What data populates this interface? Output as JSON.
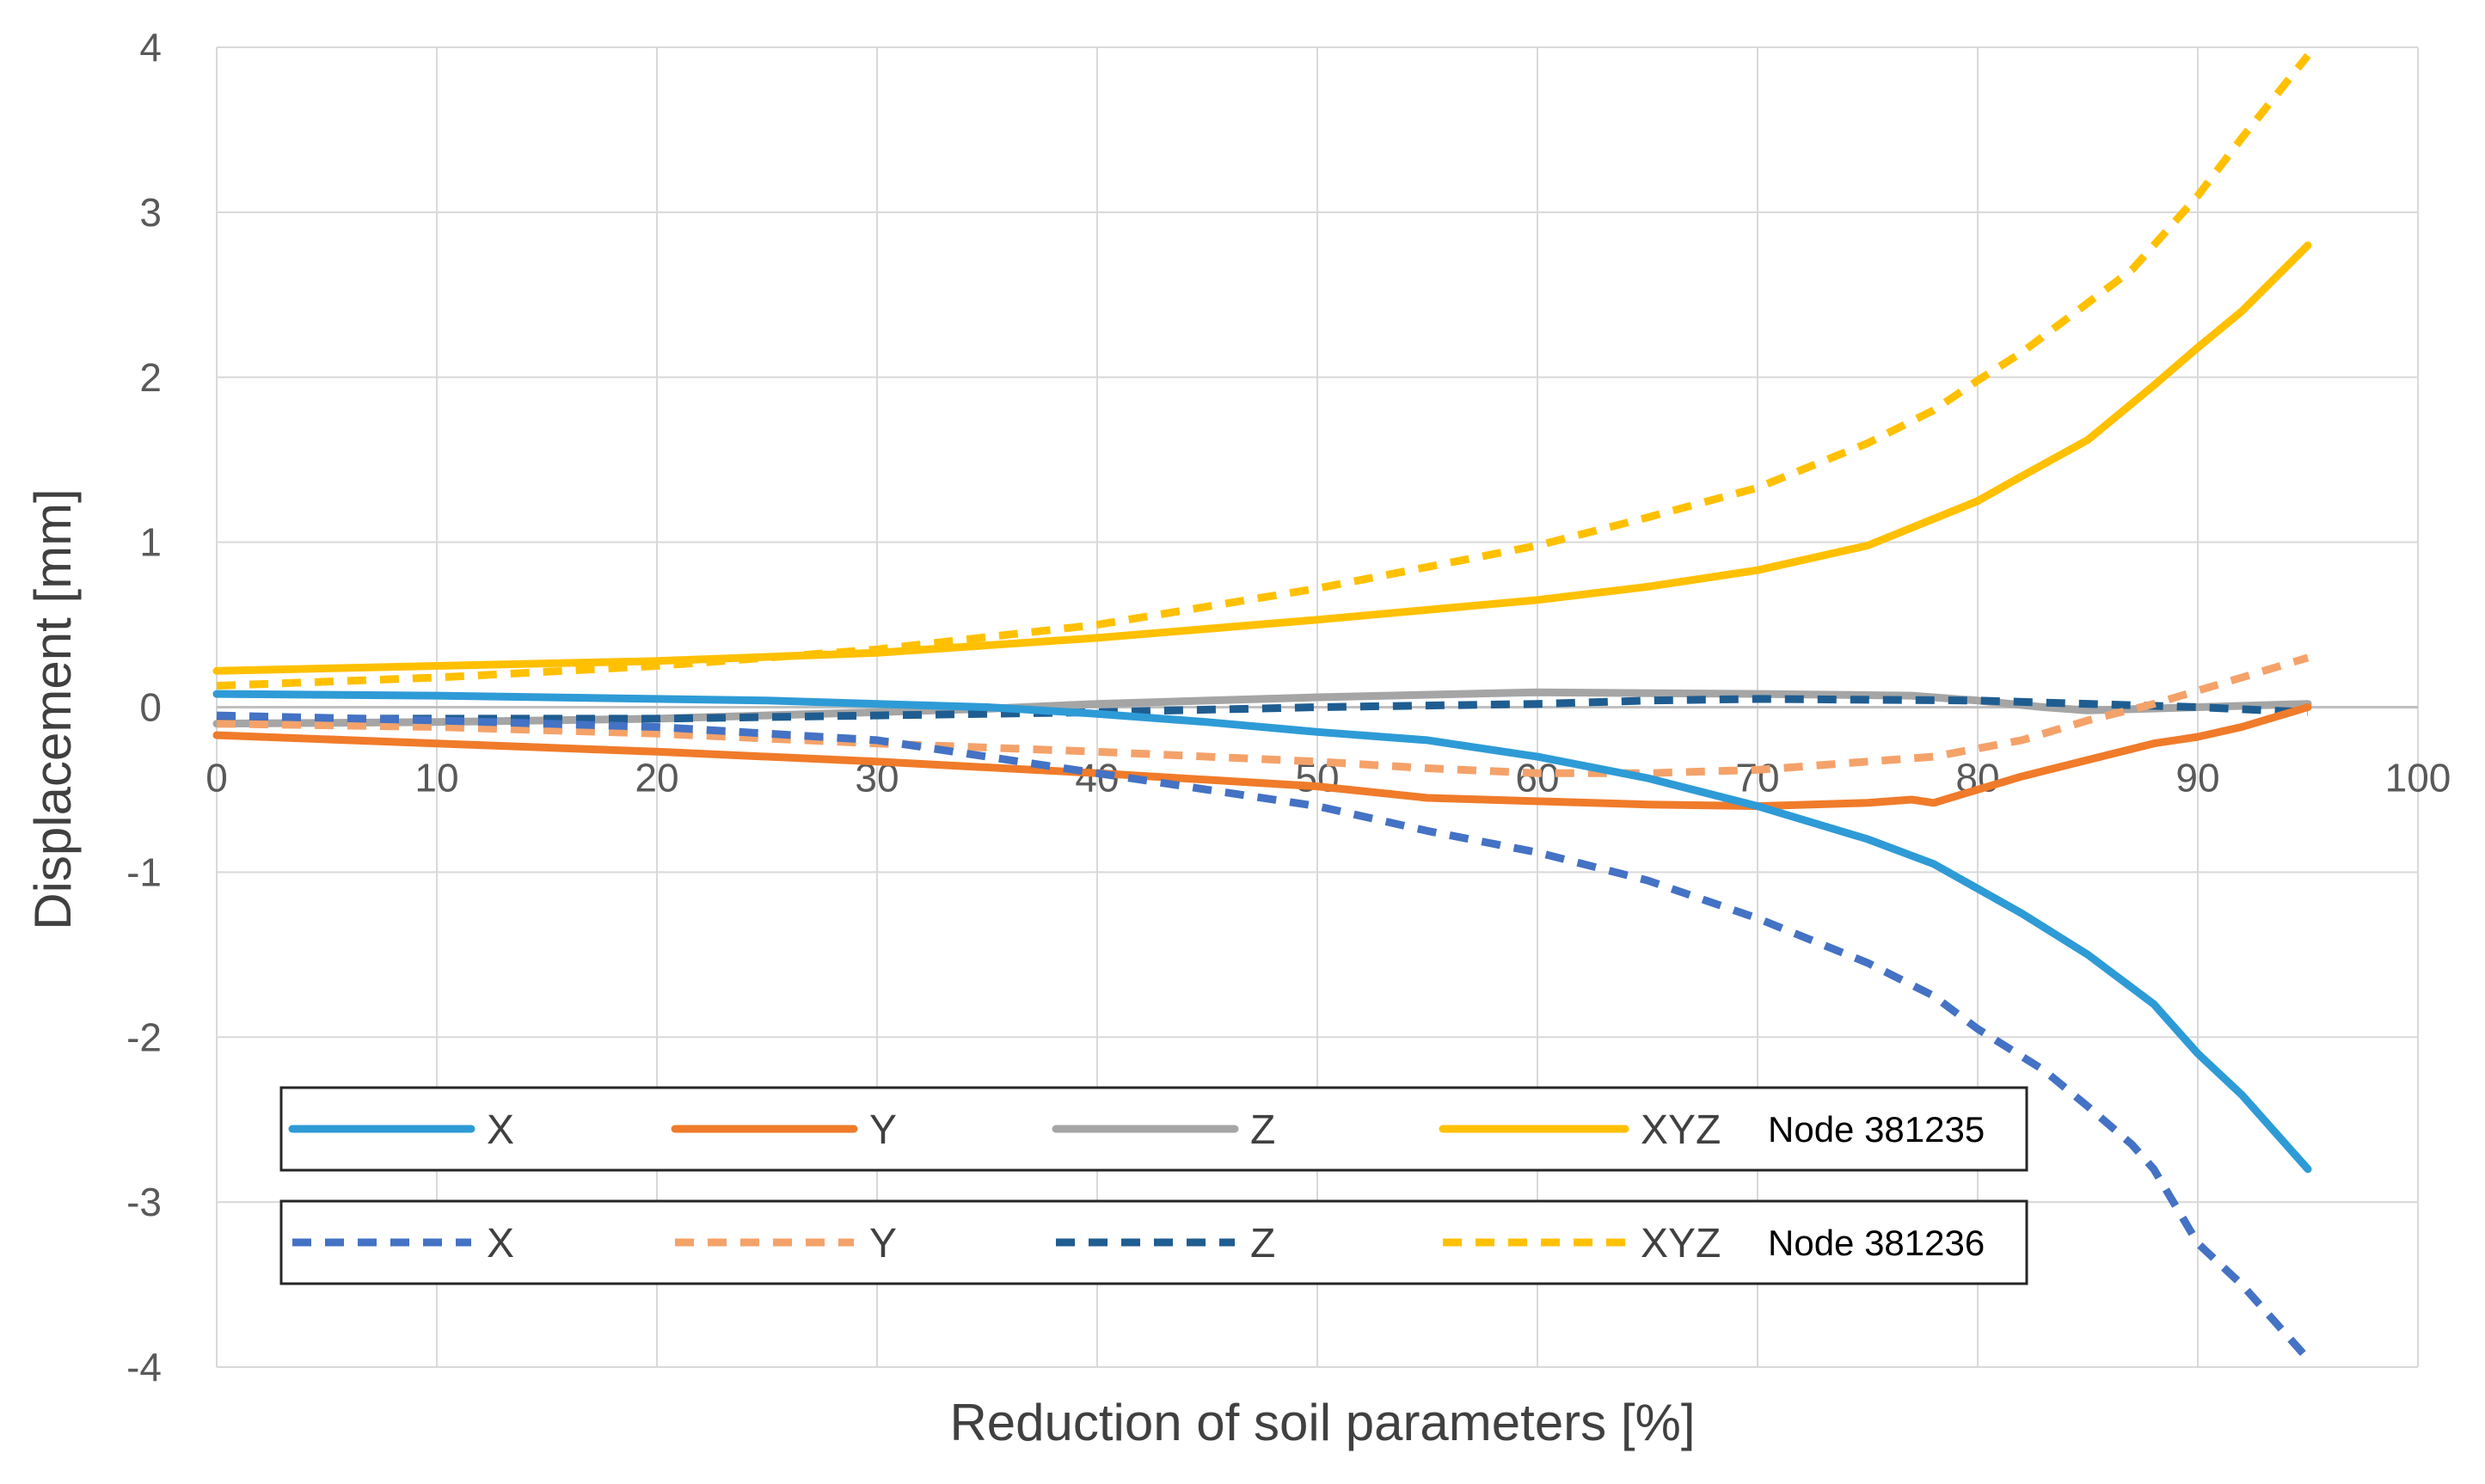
{
  "chart_data": {
    "type": "line",
    "xlabel": "Reduction of soil parameters [%]",
    "ylabel": "Displacement [mm]",
    "xlim": [
      0,
      100
    ],
    "ylim": [
      -4,
      4
    ],
    "xticks": [
      "0",
      "10",
      "20",
      "30",
      "40",
      "50",
      "60",
      "70",
      "80",
      "90",
      "100"
    ],
    "yticks": [
      "4",
      "3",
      "2",
      "1",
      "0",
      "-1",
      "-2",
      "-3",
      "-4"
    ],
    "grid": true,
    "legend": [
      {
        "node": "Node 381235",
        "style": "solid",
        "entries": [
          "X",
          "Y",
          "Z",
          "XYZ"
        ]
      },
      {
        "node": "Node 381236",
        "style": "dashed",
        "entries": [
          "X",
          "Y",
          "Z",
          "XYZ"
        ]
      }
    ],
    "series": [
      {
        "name": "X",
        "node": "Node 381235",
        "style": "solid",
        "color": "#2E9BD6",
        "x": [
          0,
          10,
          20,
          25,
          30,
          35,
          40,
          45,
          50,
          55,
          60,
          65,
          70,
          75,
          78,
          80,
          82,
          85,
          88,
          90,
          92,
          95
        ],
        "y": [
          0.08,
          0.07,
          0.05,
          0.04,
          0.02,
          0.0,
          -0.04,
          -0.09,
          -0.15,
          -0.2,
          -0.3,
          -0.43,
          -0.6,
          -0.8,
          -0.95,
          -1.1,
          -1.25,
          -1.5,
          -1.8,
          -2.1,
          -2.35,
          -2.8
        ]
      },
      {
        "name": "Y",
        "node": "Node 381235",
        "style": "solid",
        "color": "#F07B2A",
        "x": [
          0,
          10,
          20,
          30,
          40,
          50,
          55,
          60,
          65,
          70,
          75,
          77,
          78,
          80,
          82,
          85,
          88,
          90,
          92,
          95
        ],
        "y": [
          -0.17,
          -0.22,
          -0.27,
          -0.33,
          -0.4,
          -0.48,
          -0.55,
          -0.57,
          -0.59,
          -0.6,
          -0.58,
          -0.56,
          -0.58,
          -0.5,
          -0.42,
          -0.32,
          -0.22,
          -0.18,
          -0.12,
          0.0
        ]
      },
      {
        "name": "Z",
        "node": "Node 381235",
        "style": "solid",
        "color": "#A5A5A5",
        "x": [
          0,
          10,
          20,
          30,
          35,
          40,
          50,
          60,
          70,
          77,
          80,
          83,
          85,
          90,
          95
        ],
        "y": [
          -0.1,
          -0.09,
          -0.07,
          -0.03,
          -0.01,
          0.02,
          0.06,
          0.09,
          0.08,
          0.07,
          0.04,
          0.0,
          -0.02,
          0.0,
          0.02
        ]
      },
      {
        "name": "XYZ",
        "node": "Node 381235",
        "style": "solid",
        "color": "#FFC000",
        "x": [
          0,
          10,
          20,
          30,
          40,
          50,
          60,
          65,
          70,
          75,
          80,
          82,
          85,
          88,
          90,
          92,
          95
        ],
        "y": [
          0.22,
          0.25,
          0.28,
          0.33,
          0.42,
          0.53,
          0.65,
          0.73,
          0.83,
          0.98,
          1.25,
          1.4,
          1.62,
          1.95,
          2.18,
          2.4,
          2.8
        ]
      },
      {
        "name": "X",
        "node": "Node 381236",
        "style": "dashed",
        "color": "#4472C4",
        "x": [
          0,
          10,
          20,
          30,
          40,
          50,
          55,
          60,
          65,
          70,
          75,
          78,
          80,
          83,
          85,
          87,
          88,
          90,
          92,
          95
        ],
        "y": [
          -0.05,
          -0.08,
          -0.12,
          -0.2,
          -0.4,
          -0.6,
          -0.75,
          -0.88,
          -1.05,
          -1.28,
          -1.55,
          -1.75,
          -1.95,
          -2.2,
          -2.42,
          -2.65,
          -2.8,
          -3.25,
          -3.5,
          -3.95
        ]
      },
      {
        "name": "Y",
        "node": "Node 381236",
        "style": "dashed",
        "color": "#F4A26A",
        "x": [
          0,
          10,
          20,
          30,
          40,
          50,
          55,
          60,
          65,
          70,
          75,
          78,
          80,
          82,
          85,
          88,
          90,
          92,
          95
        ],
        "y": [
          -0.1,
          -0.12,
          -0.16,
          -0.22,
          -0.27,
          -0.33,
          -0.37,
          -0.4,
          -0.4,
          -0.38,
          -0.33,
          -0.3,
          -0.25,
          -0.2,
          -0.08,
          0.02,
          0.1,
          0.18,
          0.3
        ]
      },
      {
        "name": "Z",
        "node": "Node 381236",
        "style": "dashed",
        "color": "#1F5D91",
        "x": [
          0,
          10,
          20,
          30,
          40,
          50,
          60,
          65,
          70,
          80,
          90,
          95
        ],
        "y": [
          -0.07,
          -0.07,
          -0.07,
          -0.05,
          -0.03,
          0.0,
          0.02,
          0.04,
          0.05,
          0.04,
          0.0,
          -0.03
        ]
      },
      {
        "name": "XYZ",
        "node": "Node 381236",
        "style": "dashed",
        "color": "#FFC000",
        "x": [
          0,
          10,
          20,
          30,
          40,
          50,
          60,
          65,
          70,
          75,
          78,
          80,
          82,
          85,
          87,
          88,
          90,
          92,
          95
        ],
        "y": [
          0.13,
          0.18,
          0.25,
          0.35,
          0.5,
          0.72,
          0.98,
          1.15,
          1.33,
          1.6,
          1.8,
          1.98,
          2.15,
          2.45,
          2.65,
          2.8,
          3.1,
          3.45,
          3.95
        ]
      }
    ]
  }
}
